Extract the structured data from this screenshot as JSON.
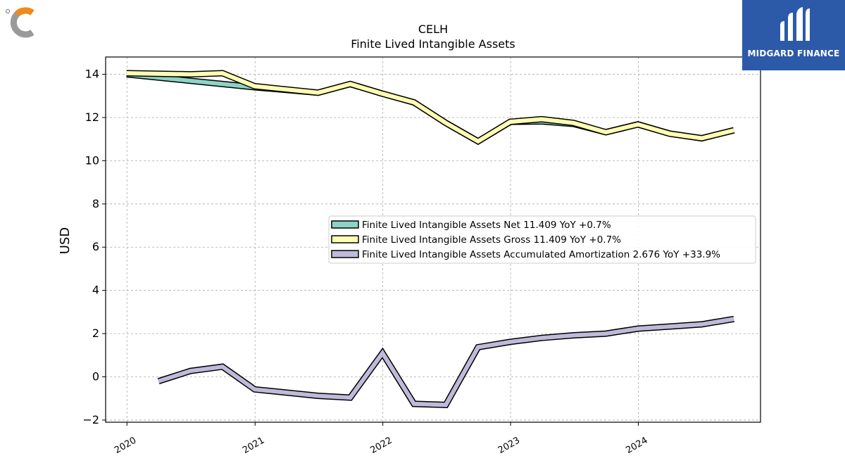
{
  "brand": {
    "name": "MIDGARD FINANCE",
    "color": "#2c5aa8"
  },
  "chart_data": {
    "type": "line",
    "title": "CELH",
    "subtitle": "Finite Lived Intangible Assets",
    "xlabel": "",
    "ylabel": "USD",
    "ylim": [
      -2.1,
      14.8
    ],
    "xlim": [
      "2019-11-01",
      "2024-12-15"
    ],
    "yticks": [
      -2,
      0,
      2,
      4,
      6,
      8,
      10,
      12,
      14
    ],
    "xticks": [
      "2020",
      "2021",
      "2022",
      "2023",
      "2024"
    ],
    "grid": true,
    "legend_position": "center-right",
    "series": [
      {
        "name": "Finite Lived Intangible Assets Net",
        "legend_label": "Finite Lived Intangible Assets Net  11.409 YoY +0.7%",
        "color": "#8dd3c7",
        "x": [
          "2019-12-31",
          "2020-06-30",
          "2020-09-30",
          "2020-12-31",
          "2021-06-30",
          "2021-09-30",
          "2021-12-31",
          "2022-03-31",
          "2022-06-30",
          "2022-09-30",
          "2022-12-31",
          "2023-03-31",
          "2023-06-30",
          "2023-09-30",
          "2023-12-31",
          "2024-03-31",
          "2024-06-30",
          "2024-09-30"
        ],
        "y": [
          14.0,
          13.7,
          13.55,
          13.4,
          13.15,
          13.55,
          13.1,
          12.7,
          11.75,
          10.9,
          11.8,
          11.82,
          11.7,
          11.32,
          11.68,
          11.25,
          11.04,
          11.409
        ]
      },
      {
        "name": "Finite Lived Intangible Assets Gross",
        "legend_label": "Finite Lived Intangible Assets Gross  11.409 YoY +0.7%",
        "color": "#ffffb3",
        "x": [
          "2019-12-31",
          "2020-06-30",
          "2020-09-30",
          "2020-12-31",
          "2021-06-30",
          "2021-09-30",
          "2021-12-31",
          "2022-03-31",
          "2022-06-30",
          "2022-09-30",
          "2022-12-31",
          "2023-03-31",
          "2023-06-30",
          "2023-09-30",
          "2023-12-31",
          "2024-03-31",
          "2024-06-30",
          "2024-09-30"
        ],
        "y": [
          14.05,
          14.0,
          14.05,
          13.45,
          13.15,
          13.55,
          13.1,
          12.7,
          11.75,
          10.9,
          11.8,
          11.92,
          11.75,
          11.32,
          11.68,
          11.25,
          11.04,
          11.409
        ]
      },
      {
        "name": "Finite Lived Intangible Assets Accumulated Amortization",
        "legend_label": "Finite Lived Intangible Assets Accumulated Amortization  2.676 YoY +33.9%",
        "color": "#bebada",
        "x": [
          "2020-03-31",
          "2020-06-30",
          "2020-09-30",
          "2020-12-31",
          "2021-06-30",
          "2021-09-30",
          "2021-12-31",
          "2022-03-31",
          "2022-06-30",
          "2022-09-30",
          "2022-12-31",
          "2023-03-31",
          "2023-06-30",
          "2023-09-30",
          "2023-12-31",
          "2024-03-31",
          "2024-06-30",
          "2024-09-30"
        ],
        "y": [
          -0.2,
          0.27,
          0.47,
          -0.58,
          -0.88,
          -0.96,
          1.1,
          -1.25,
          -1.3,
          1.37,
          1.62,
          1.8,
          1.92,
          2.0,
          2.23,
          2.33,
          2.43,
          2.676
        ]
      }
    ]
  }
}
